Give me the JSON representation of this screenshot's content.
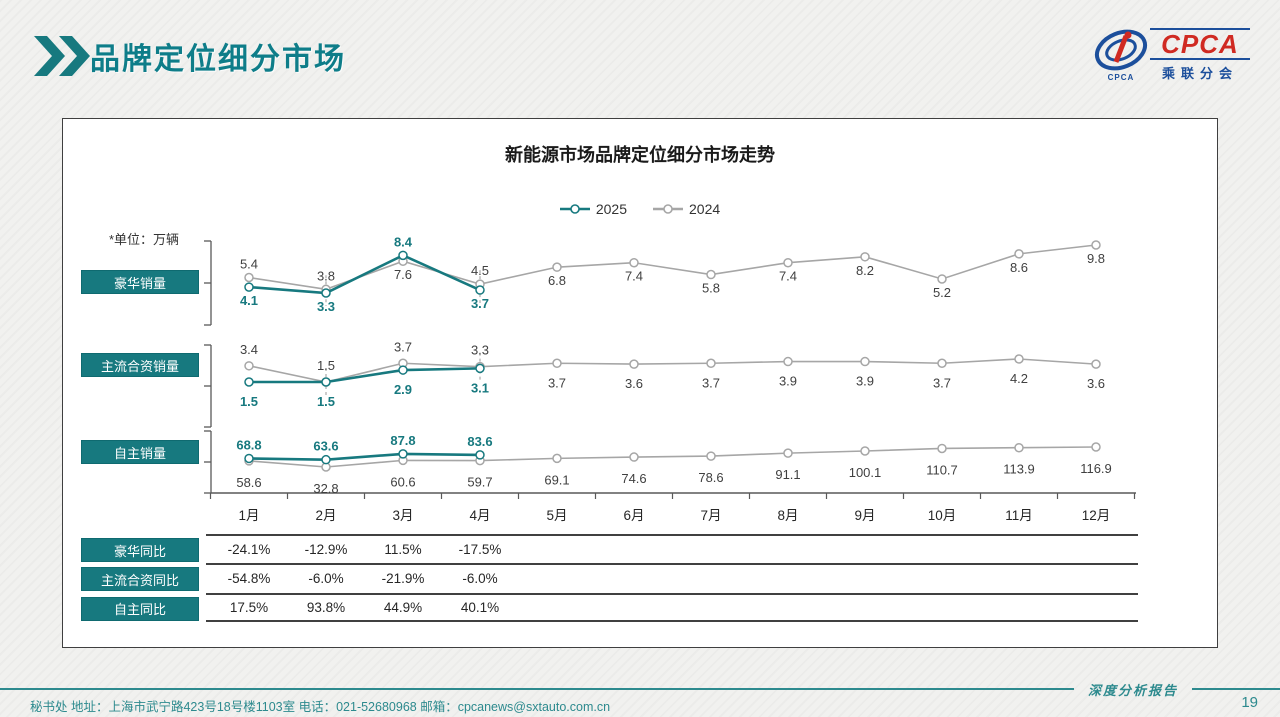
{
  "page": {
    "header": {
      "title": "品牌定位细分市场"
    },
    "logo": {
      "text": "CPCA",
      "subtext": "乘联分会"
    },
    "footer": {
      "left": "秘书处   地址：上海市武宁路423号18号楼1103室  电话：021-52680968   邮箱：cpcanews@sxtauto.com.cn",
      "report_label": "深度分析报告",
      "page_number": "19"
    }
  },
  "chart_data": {
    "type": "line",
    "title": "新能源市场品牌定位细分市场走势",
    "unit_note": "*单位：万辆",
    "categories": [
      "1月",
      "2月",
      "3月",
      "4月",
      "5月",
      "6月",
      "7月",
      "8月",
      "9月",
      "10月",
      "11月",
      "12月"
    ],
    "legend": [
      {
        "name": "2025",
        "color": "#17797f"
      },
      {
        "name": "2024",
        "color": "#a6a6a6"
      }
    ],
    "sections": [
      {
        "label": "豪华销量",
        "series": [
          {
            "name": "2025",
            "color": "#17797f",
            "values": [
              4.1,
              3.3,
              8.4,
              3.7
            ],
            "label_above": [
              false,
              false,
              true,
              false
            ]
          },
          {
            "name": "2024",
            "color": "#a6a6a6",
            "values": [
              5.4,
              3.8,
              7.6,
              4.5,
              6.8,
              7.4,
              5.8,
              7.4,
              8.2,
              5.2,
              8.6,
              9.8
            ],
            "label_above": [
              true,
              true,
              false,
              true,
              false,
              false,
              false,
              false,
              false,
              false,
              false,
              false
            ]
          }
        ]
      },
      {
        "label": "主流合资销量",
        "series": [
          {
            "name": "2025",
            "color": "#17797f",
            "values": [
              1.5,
              1.5,
              2.9,
              3.1
            ],
            "label_above": [
              false,
              false,
              false,
              false
            ]
          },
          {
            "name": "2024",
            "color": "#a6a6a6",
            "values": [
              3.4,
              1.5,
              3.7,
              3.3,
              3.7,
              3.6,
              3.7,
              3.9,
              3.9,
              3.7,
              4.2,
              3.6
            ],
            "label_above": [
              true,
              true,
              true,
              true,
              false,
              false,
              false,
              false,
              false,
              false,
              false,
              false
            ]
          }
        ]
      },
      {
        "label": "自主销量",
        "series": [
          {
            "name": "2025",
            "color": "#17797f",
            "values": [
              68.8,
              63.6,
              87.8,
              83.6
            ],
            "label_above": [
              true,
              true,
              true,
              true
            ]
          },
          {
            "name": "2024",
            "color": "#a6a6a6",
            "values": [
              58.6,
              32.8,
              60.6,
              59.7,
              69.1,
              74.6,
              78.6,
              91.1,
              100.1,
              110.7,
              113.9,
              116.9
            ],
            "label_above": [
              false,
              false,
              false,
              false,
              false,
              false,
              false,
              false,
              false,
              false,
              false,
              false
            ]
          }
        ]
      }
    ],
    "yoy_table": {
      "rows": [
        {
          "label": "豪华同比",
          "values": [
            "-24.1%",
            "-12.9%",
            "11.5%",
            "-17.5%"
          ]
        },
        {
          "label": "主流合资同比",
          "values": [
            "-54.8%",
            "-6.0%",
            "-21.9%",
            "-6.0%"
          ]
        },
        {
          "label": "自主同比",
          "values": [
            "17.5%",
            "93.8%",
            "44.9%",
            "40.1%"
          ]
        }
      ]
    }
  }
}
